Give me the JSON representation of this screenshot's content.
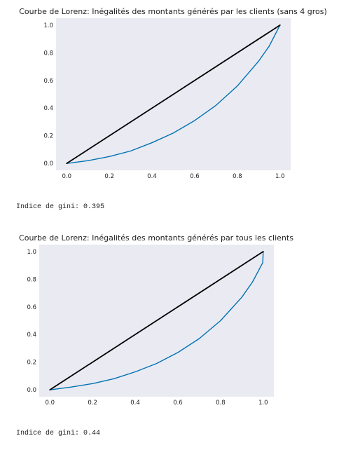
{
  "outputs": [
    {
      "gini_label": "Indice de gini: 0.395",
      "chart_data": {
        "type": "line",
        "title": "Courbe de Lorenz: Inégalités des montants générés par les clients (sans 4 gros)",
        "xlabel": "",
        "ylabel": "",
        "xlim": [
          -0.05,
          1.05
        ],
        "ylim": [
          -0.05,
          1.05
        ],
        "xticks": [
          "0.0",
          "0.2",
          "0.4",
          "0.6",
          "0.8",
          "1.0"
        ],
        "yticks": [
          "0.0",
          "0.2",
          "0.4",
          "0.6",
          "0.8",
          "1.0"
        ],
        "grid": false,
        "background": "#eaeaf2",
        "series": [
          {
            "color": "#0072b2",
            "x": [
              0,
              0.1,
              0.2,
              0.3,
              0.4,
              0.5,
              0.6,
              0.7,
              0.8,
              0.9,
              0.95,
              1.0
            ],
            "y": [
              0,
              0.02,
              0.05,
              0.09,
              0.15,
              0.22,
              0.31,
              0.42,
              0.56,
              0.74,
              0.85,
              1.0
            ]
          },
          {
            "color": "#000000",
            "x": [
              0,
              1
            ],
            "y": [
              0,
              1
            ]
          }
        ]
      }
    },
    {
      "gini_label": "Indice de gini: 0.44",
      "chart_data": {
        "type": "line",
        "title": "Courbe de Lorenz: Inégalités des montants générés par tous les clients",
        "xlabel": "",
        "ylabel": "",
        "xlim": [
          -0.05,
          1.05
        ],
        "ylim": [
          -0.05,
          1.05
        ],
        "xticks": [
          "0.0",
          "0.2",
          "0.4",
          "0.6",
          "0.8",
          "1.0"
        ],
        "yticks": [
          "0.0",
          "0.2",
          "0.4",
          "0.6",
          "0.8",
          "1.0"
        ],
        "grid": false,
        "background": "#eaeaf2",
        "series": [
          {
            "color": "#0072b2",
            "x": [
              0,
              0.1,
              0.2,
              0.3,
              0.4,
              0.5,
              0.6,
              0.7,
              0.8,
              0.9,
              0.95,
              0.998,
              1.0
            ],
            "y": [
              0,
              0.02,
              0.045,
              0.08,
              0.13,
              0.19,
              0.27,
              0.37,
              0.5,
              0.67,
              0.78,
              0.92,
              1.0
            ]
          },
          {
            "color": "#000000",
            "x": [
              0,
              1
            ],
            "y": [
              0,
              1
            ]
          }
        ]
      }
    }
  ]
}
